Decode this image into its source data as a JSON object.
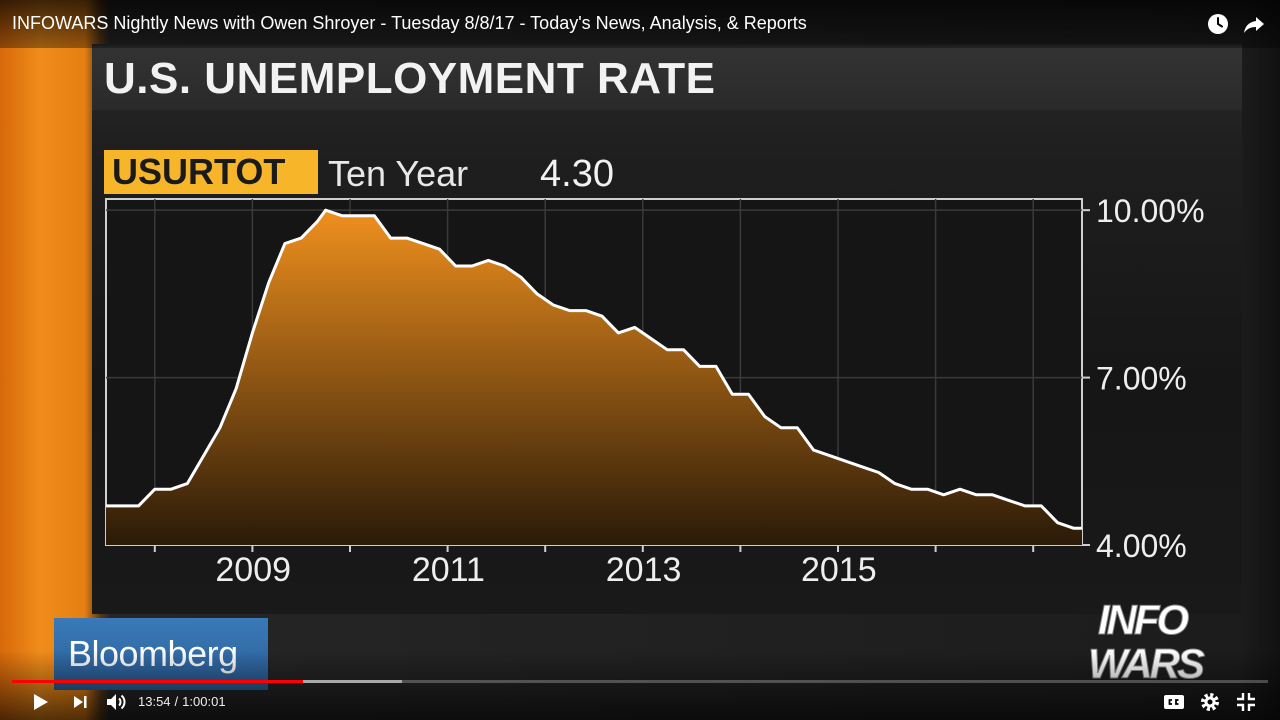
{
  "player": {
    "video_title": "INFOWARS Nightly News with Owen Shroyer - Tuesday 8/8/17 - Today's News, Analysis, & Reports",
    "current_time": "13:54",
    "time_separator": "/",
    "duration": "1:00:01",
    "progress_played_fraction": 0.2317,
    "progress_buffered_fraction": 0.3105,
    "icons": {
      "watch_later": "clock-icon",
      "share": "share-arrow-icon",
      "play": "play-icon",
      "next": "next-icon",
      "volume": "volume-icon",
      "captions": "cc-icon",
      "settings": "gear-icon",
      "exit_fullscreen": "exit-fullscreen-icon"
    },
    "colors": {
      "progress": "#ff0000"
    }
  },
  "broadcast": {
    "headline": "U.S. UNEMPLOYMENT RATE",
    "ticker": "USURTOT",
    "period": "Ten Year",
    "last_value": "4.30",
    "network_logo": "Bloomberg",
    "channel_logo_lines": [
      "INFO",
      "WARS"
    ],
    "colors": {
      "ticker_bg": "#f7b52a",
      "area_top": "#f0901e",
      "area_bottom": "#2a1a08",
      "line": "#ffffff"
    }
  },
  "chart_data": {
    "type": "area",
    "x_tick_labels": [
      "2009",
      "2011",
      "2013",
      "2015"
    ],
    "y_tick_labels": [
      "10.00%",
      "7.00%",
      "4.00%"
    ],
    "y_ticks": [
      10,
      7,
      4
    ],
    "ylim": [
      4,
      10.2
    ],
    "xlim": [
      "2007-07",
      "2017-07"
    ],
    "grid": true,
    "series": [
      {
        "x": [
          "2007-07",
          "2007-09",
          "2007-11",
          "2008-01",
          "2008-03",
          "2008-05",
          "2008-07",
          "2008-09",
          "2008-11",
          "2009-01",
          "2009-03",
          "2009-05",
          "2009-07",
          "2009-09",
          "2009-10",
          "2009-12",
          "2010-02",
          "2010-04",
          "2010-06",
          "2010-08",
          "2010-10",
          "2010-12",
          "2011-02",
          "2011-04",
          "2011-06",
          "2011-08",
          "2011-10",
          "2011-12",
          "2012-02",
          "2012-04",
          "2012-06",
          "2012-08",
          "2012-10",
          "2012-12",
          "2013-02",
          "2013-04",
          "2013-06",
          "2013-08",
          "2013-10",
          "2013-12",
          "2014-02",
          "2014-04",
          "2014-06",
          "2014-08",
          "2014-10",
          "2014-12",
          "2015-02",
          "2015-04",
          "2015-06",
          "2015-08",
          "2015-10",
          "2015-12",
          "2016-02",
          "2016-04",
          "2016-06",
          "2016-08",
          "2016-10",
          "2016-12",
          "2017-02",
          "2017-04",
          "2017-06",
          "2017-07"
        ],
        "y": [
          4.7,
          4.7,
          4.7,
          5.0,
          5.0,
          5.1,
          5.6,
          6.1,
          6.8,
          7.8,
          8.7,
          9.4,
          9.5,
          9.8,
          10.0,
          9.9,
          9.9,
          9.9,
          9.5,
          9.5,
          9.4,
          9.3,
          9.0,
          9.0,
          9.1,
          9.0,
          8.8,
          8.5,
          8.3,
          8.2,
          8.2,
          8.1,
          7.8,
          7.9,
          7.7,
          7.5,
          7.5,
          7.2,
          7.2,
          6.7,
          6.7,
          6.3,
          6.1,
          6.1,
          5.7,
          5.6,
          5.5,
          5.4,
          5.3,
          5.1,
          5.0,
          5.0,
          4.9,
          5.0,
          4.9,
          4.9,
          4.8,
          4.7,
          4.7,
          4.4,
          4.3,
          4.3
        ]
      }
    ]
  }
}
